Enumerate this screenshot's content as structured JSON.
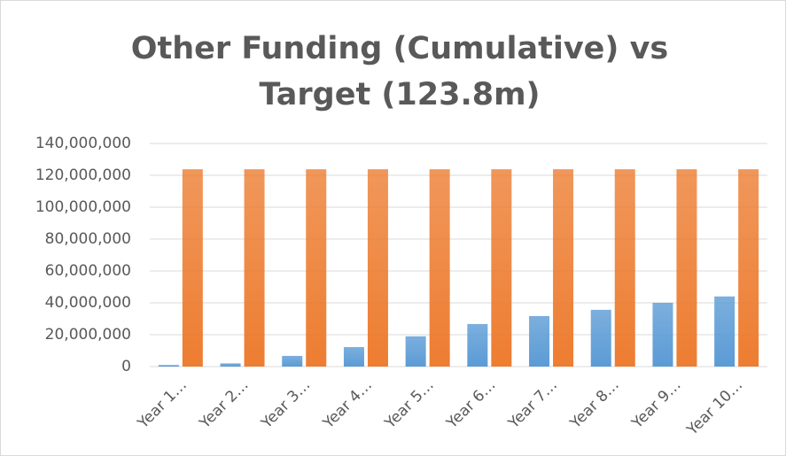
{
  "chart_data": {
    "type": "bar",
    "title": "Other Funding (Cumulative) vs Target (123.8m)",
    "categories": [
      "Year 1…",
      "Year 2…",
      "Year 3…",
      "Year 4…",
      "Year 5…",
      "Year 6…",
      "Year 7…",
      "Year 8…",
      "Year 9…",
      "Year 10…"
    ],
    "series": [
      {
        "color": "#5b9bd5",
        "values": [
          1000000,
          2000000,
          6700000,
          12200000,
          19000000,
          26700000,
          31700000,
          35600000,
          40000000,
          44000000
        ]
      },
      {
        "color": "#ed7d31",
        "values": [
          123800000,
          123800000,
          123800000,
          123800000,
          123800000,
          123800000,
          123800000,
          123800000,
          123800000,
          123800000
        ]
      }
    ],
    "ylim": [
      0,
      140000000
    ],
    "yticks": [
      0,
      {
        "value": 20000000,
        "label": "20,000,000"
      },
      {
        "value": 40000000,
        "label": "40,000,000"
      },
      {
        "value": 60000000,
        "label": "60,000,000"
      },
      {
        "value": 80000000,
        "label": "80,000,000"
      },
      {
        "value": 100000000,
        "label": "100,000,000"
      },
      {
        "value": 120000000,
        "label": "120,000,000"
      },
      {
        "value": 140000000,
        "label": "140,000,000"
      }
    ],
    "grid": true
  }
}
